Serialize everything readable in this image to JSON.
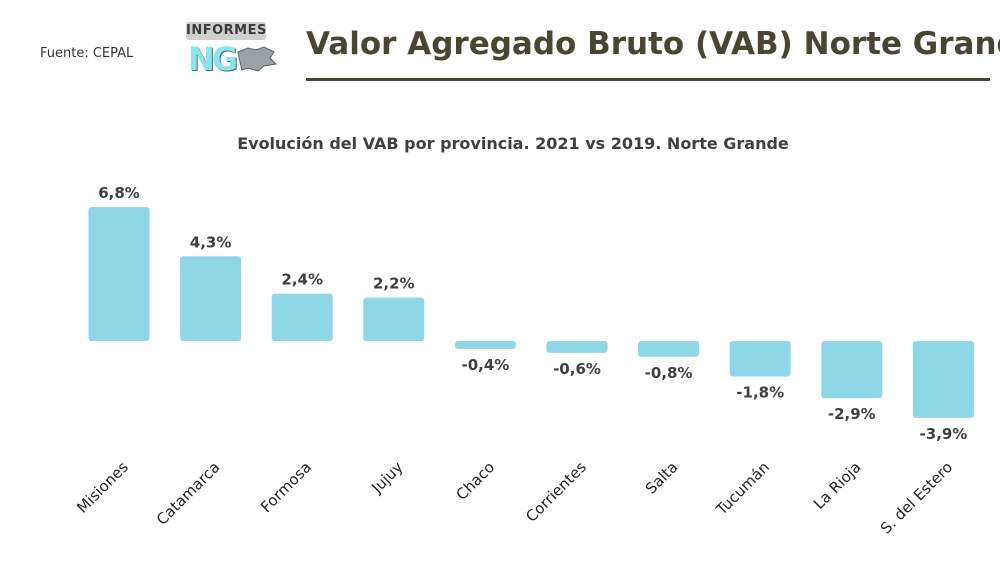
{
  "header": {
    "source": "Fuente: CEPAL",
    "logo_badge": "INFORMES",
    "logo_mark": "NG",
    "title": "Valor Agregado Bruto (VAB) Norte Grande"
  },
  "colors": {
    "bar": "#8fd6e6",
    "title": "#4a4531",
    "text": "#3f3f3f"
  },
  "chart_data": {
    "type": "bar",
    "title": "Evolución del VAB por provincia. 2021 vs 2019. Norte Grande",
    "xlabel": "",
    "ylabel": "",
    "unit": "%",
    "categories": [
      "Misiones",
      "Catamarca",
      "Formosa",
      "Jujuy",
      "Chaco",
      "Corrientes",
      "Salta",
      "Tucumán",
      "La Rioja",
      "S. del Estero"
    ],
    "values": [
      6.8,
      4.3,
      2.4,
      2.2,
      -0.4,
      -0.6,
      -0.8,
      -1.8,
      -2.9,
      -3.9
    ],
    "labels": [
      "6,8%",
      "4,3%",
      "2,4%",
      "2,2%",
      "-0,4%",
      "-0,6%",
      "-0,8%",
      "-1,8%",
      "-2,9%",
      "-3,9%"
    ],
    "grid": false,
    "legend": "none"
  }
}
